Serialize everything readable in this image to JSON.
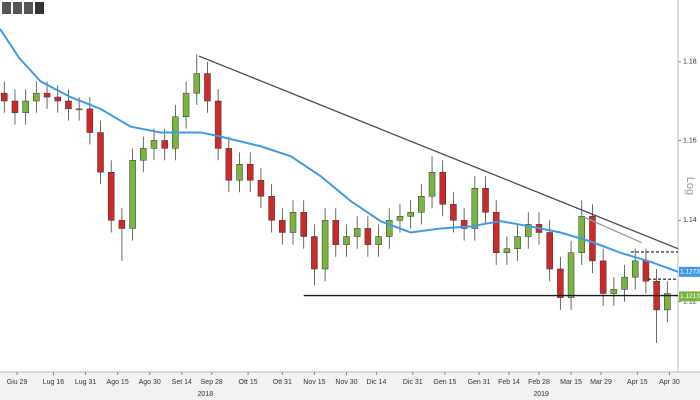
{
  "chart_data": {
    "type": "candlestick",
    "log": true,
    "scale_label": "Log",
    "up_color": "#79b441",
    "down_color": "#cc2a2a",
    "x": [
      -2,
      3,
      8,
      13,
      18,
      23,
      28,
      33,
      38,
      43,
      48,
      53,
      58,
      63,
      68,
      73,
      78,
      83,
      88,
      93,
      98,
      103,
      108,
      113,
      118,
      123,
      128,
      133,
      138,
      143,
      148,
      153,
      158,
      163,
      168,
      173,
      178,
      183,
      188,
      193,
      198,
      203,
      208,
      213,
      218,
      223,
      228,
      233,
      238,
      243,
      248,
      253,
      258,
      263,
      268,
      273,
      278,
      283,
      288,
      293,
      298,
      303,
      308
    ],
    "open": [
      1.172,
      1.17,
      1.167,
      1.17,
      1.172,
      1.171,
      1.17,
      1.168,
      1.168,
      1.162,
      1.152,
      1.14,
      1.138,
      1.155,
      1.158,
      1.16,
      1.158,
      1.166,
      1.172,
      1.177,
      1.17,
      1.158,
      1.15,
      1.154,
      1.15,
      1.146,
      1.14,
      1.137,
      1.142,
      1.136,
      1.128,
      1.14,
      1.134,
      1.136,
      1.138,
      1.134,
      1.136,
      1.14,
      1.141,
      1.142,
      1.146,
      1.152,
      1.144,
      1.14,
      1.138,
      1.148,
      1.142,
      1.132,
      1.133,
      1.136,
      1.139,
      1.137,
      1.128,
      1.121,
      1.132,
      1.141,
      1.13,
      1.122,
      1.123,
      1.126,
      1.13,
      1.125,
      1.118
    ],
    "high": [
      1.175,
      1.173,
      1.173,
      1.175,
      1.175,
      1.174,
      1.173,
      1.171,
      1.171,
      1.165,
      1.155,
      1.143,
      1.158,
      1.161,
      1.163,
      1.163,
      1.169,
      1.175,
      1.182,
      1.18,
      1.173,
      1.161,
      1.157,
      1.157,
      1.153,
      1.149,
      1.143,
      1.145,
      1.145,
      1.139,
      1.143,
      1.143,
      1.139,
      1.141,
      1.141,
      1.139,
      1.143,
      1.144,
      1.145,
      1.149,
      1.156,
      1.155,
      1.147,
      1.143,
      1.151,
      1.151,
      1.145,
      1.136,
      1.139,
      1.142,
      1.142,
      1.14,
      1.131,
      1.135,
      1.145,
      1.144,
      1.133,
      1.126,
      1.129,
      1.133,
      1.133,
      1.128,
      1.125
    ],
    "low": [
      1.167,
      1.164,
      1.164,
      1.167,
      1.168,
      1.167,
      1.165,
      1.165,
      1.159,
      1.149,
      1.137,
      1.13,
      1.135,
      1.152,
      1.155,
      1.155,
      1.155,
      1.163,
      1.169,
      1.167,
      1.155,
      1.147,
      1.147,
      1.147,
      1.143,
      1.137,
      1.134,
      1.134,
      1.133,
      1.124,
      1.125,
      1.131,
      1.131,
      1.133,
      1.131,
      1.131,
      1.133,
      1.137,
      1.138,
      1.139,
      1.143,
      1.141,
      1.137,
      1.135,
      1.135,
      1.139,
      1.129,
      1.129,
      1.13,
      1.133,
      1.134,
      1.125,
      1.118,
      1.118,
      1.129,
      1.127,
      1.119,
      1.119,
      1.12,
      1.123,
      1.122,
      1.11,
      1.115
    ],
    "close": [
      1.17,
      1.167,
      1.17,
      1.172,
      1.171,
      1.17,
      1.168,
      1.168,
      1.162,
      1.152,
      1.14,
      1.138,
      1.155,
      1.158,
      1.16,
      1.158,
      1.166,
      1.172,
      1.177,
      1.17,
      1.158,
      1.15,
      1.154,
      1.15,
      1.146,
      1.14,
      1.137,
      1.142,
      1.136,
      1.128,
      1.14,
      1.134,
      1.136,
      1.138,
      1.134,
      1.136,
      1.14,
      1.141,
      1.142,
      1.146,
      1.152,
      1.144,
      1.14,
      1.138,
      1.148,
      1.142,
      1.132,
      1.133,
      1.136,
      1.139,
      1.137,
      1.128,
      1.121,
      1.132,
      1.141,
      1.13,
      1.122,
      1.123,
      1.126,
      1.13,
      1.125,
      1.118,
      1.122
    ],
    "moving_average": {
      "color": "#3d9be9",
      "x": [
        -4,
        5,
        15,
        29,
        43,
        57,
        71,
        90,
        99,
        118,
        132,
        146,
        160,
        174,
        188,
        202,
        216,
        230,
        244,
        258,
        272,
        286,
        300,
        313
      ],
      "values": [
        1.1885,
        1.181,
        1.175,
        1.171,
        1.168,
        1.1635,
        1.162,
        1.162,
        1.161,
        1.1585,
        1.156,
        1.151,
        1.1448,
        1.1398,
        1.137,
        1.138,
        1.1385,
        1.1398,
        1.1385,
        1.137,
        1.1348,
        1.132,
        1.1298,
        1.1273
      ]
    },
    "trendlines": [
      {
        "color": "#3b4a5e",
        "x": [
          89,
          313
        ],
        "values": [
          1.1815,
          1.133
        ]
      },
      {
        "color": "#1a1a1a",
        "x": [
          138,
          313
        ],
        "values": [
          1.1215,
          1.1215
        ]
      },
      {
        "color": "#9aa0a8",
        "x": [
          269,
          296
        ],
        "values": [
          1.1408,
          1.1345
        ]
      }
    ],
    "dashed_lines": [
      {
        "color": "#1a1a1a",
        "x": [
          291,
          313
        ],
        "values": [
          1.1322,
          1.1322
        ]
      },
      {
        "color": "#1a1a1a",
        "x": [
          299,
          313
        ],
        "values": [
          1.1255,
          1.1255
        ]
      }
    ],
    "price_labels": [
      {
        "value": 1.1273,
        "color": "#3d9be9"
      },
      {
        "value": 1.1213,
        "color": "#79b441"
      }
    ],
    "xlim": [
      -4,
      313
    ],
    "ylim": [
      1.103,
      1.196
    ],
    "yticks": [
      1.12,
      1.14,
      1.16,
      1.18
    ],
    "xticks": [
      {
        "value": 4,
        "label": "Giu 29"
      },
      {
        "value": 21,
        "label": "Lug 16"
      },
      {
        "value": 36,
        "label": "Lug 31"
      },
      {
        "value": 51,
        "label": "Ago 15"
      },
      {
        "value": 66,
        "label": "Ago 30"
      },
      {
        "value": 81,
        "label": "Set 14"
      },
      {
        "value": 95,
        "label": "Sep 28"
      },
      {
        "value": 112,
        "label": "Ott 15"
      },
      {
        "value": 128,
        "label": "Ott 31"
      },
      {
        "value": 143,
        "label": "Nov 15"
      },
      {
        "value": 158,
        "label": "Nov 30"
      },
      {
        "value": 172,
        "label": "Dic 14"
      },
      {
        "value": 189,
        "label": "Dic 31"
      },
      {
        "value": 204,
        "label": "Gen 15"
      },
      {
        "value": 220,
        "label": "Gen 31"
      },
      {
        "value": 234,
        "label": "Feb 14"
      },
      {
        "value": 248,
        "label": "Feb 28"
      },
      {
        "value": 263,
        "label": "Mar 15"
      },
      {
        "value": 277,
        "label": "Mar 29"
      },
      {
        "value": 294,
        "label": "Apr 15"
      },
      {
        "value": 309,
        "label": "Apr 30"
      }
    ],
    "year_labels": [
      {
        "value": 92,
        "label": "2018"
      },
      {
        "value": 249,
        "label": "2019"
      }
    ]
  }
}
